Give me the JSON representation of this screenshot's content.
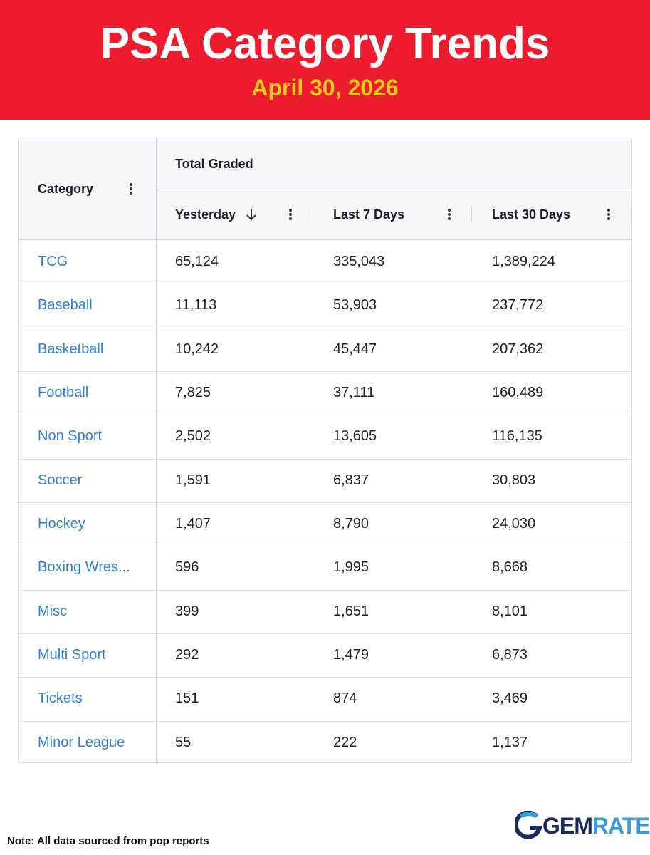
{
  "header": {
    "title": "PSA Category Trends",
    "date": "April 30, 2026"
  },
  "table": {
    "group_header": "Total Graded",
    "columns": [
      "Category",
      "Yesterday",
      "Last 7 Days",
      "Last 30 Days"
    ],
    "rows": [
      [
        "TCG",
        "65,124",
        "335,043",
        "1,389,224"
      ],
      [
        "Baseball",
        "11,113",
        "53,903",
        "237,772"
      ],
      [
        "Basketball",
        "10,242",
        "45,447",
        "207,362"
      ],
      [
        "Football",
        "7,825",
        "37,111",
        "160,489"
      ],
      [
        "Non Sport",
        "2,502",
        "13,605",
        "116,135"
      ],
      [
        "Soccer",
        "1,591",
        "6,837",
        "30,803"
      ],
      [
        "Hockey",
        "1,407",
        "8,790",
        "24,030"
      ],
      [
        "Boxing Wres...",
        "596",
        "1,995",
        "8,668"
      ],
      [
        "Misc",
        "399",
        "1,651",
        "8,101"
      ],
      [
        "Multi Sport",
        "292",
        "1,479",
        "6,873"
      ],
      [
        "Tickets",
        "151",
        "874",
        "3,469"
      ],
      [
        "Minor League",
        "55",
        "222",
        "1,137"
      ]
    ]
  },
  "footer": {
    "note": "Note: All data sourced from pop reports",
    "logo": {
      "first": "GEM",
      "second": "RATE"
    }
  }
}
